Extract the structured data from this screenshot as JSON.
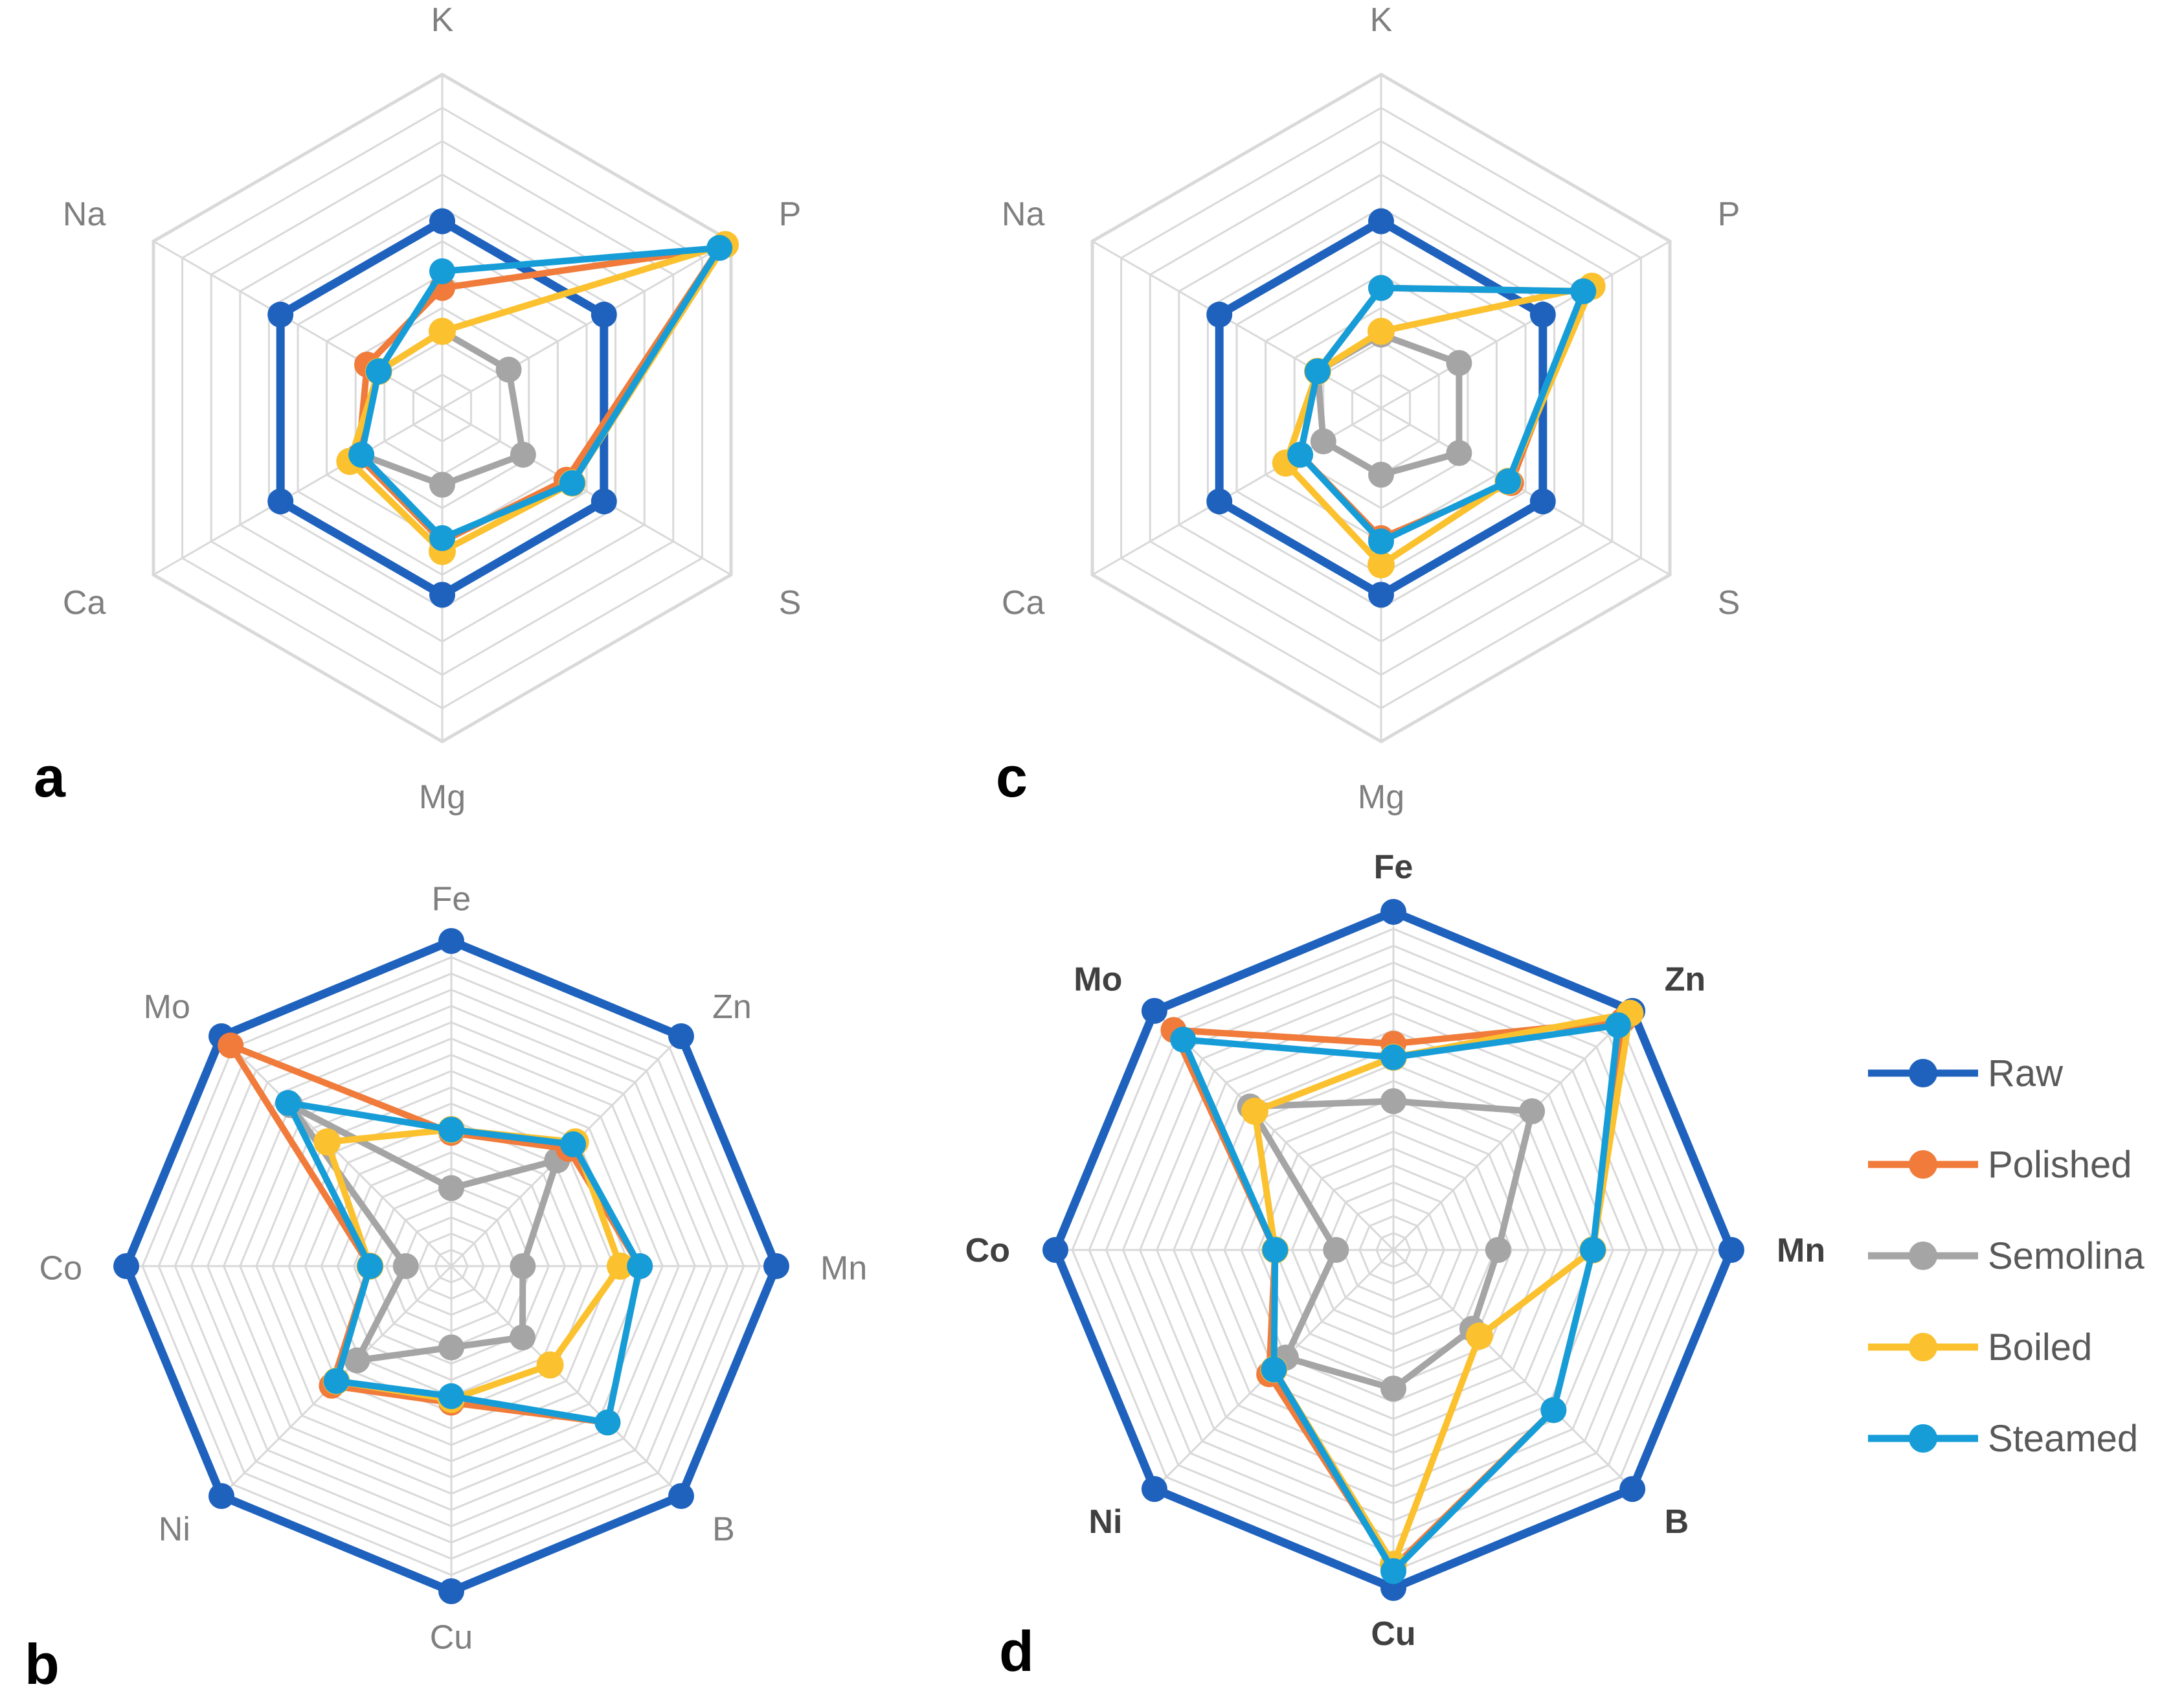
{
  "chart_data": [
    {
      "type": "radar",
      "panel": "a",
      "axes": [
        "K",
        "P",
        "S",
        "Mg",
        "Ca",
        "Na"
      ],
      "rlim": [
        0,
        1
      ],
      "grid": true,
      "series": [
        {
          "name": "Raw",
          "values": [
            0.56,
            0.56,
            0.56,
            0.56,
            0.56,
            0.56
          ]
        },
        {
          "name": "Polished",
          "values": [
            0.36,
            0.96,
            0.43,
            0.4,
            0.29,
            0.26
          ]
        },
        {
          "name": "Semolina",
          "values": [
            0.23,
            0.23,
            0.28,
            0.23,
            0.28,
            0.22
          ]
        },
        {
          "name": "Boiled",
          "values": [
            0.23,
            0.98,
            0.45,
            0.43,
            0.32,
            0.22
          ]
        },
        {
          "name": "Steamed",
          "values": [
            0.41,
            0.96,
            0.45,
            0.39,
            0.28,
            0.22
          ]
        }
      ]
    },
    {
      "type": "radar",
      "panel": "b",
      "axes": [
        "Fe",
        "Zn",
        "Mn",
        "B",
        "Cu",
        "Ni",
        "Co",
        "Mo"
      ],
      "rlim": [
        0,
        1
      ],
      "grid": true,
      "series": [
        {
          "name": "Raw",
          "values": [
            1.0,
            1.0,
            1.0,
            1.0,
            1.0,
            1.0,
            1.0,
            1.0
          ]
        },
        {
          "name": "Polished",
          "values": [
            0.41,
            0.51,
            0.58,
            0.68,
            0.42,
            0.52,
            0.25,
            0.96
          ]
        },
        {
          "name": "Semolina",
          "values": [
            0.24,
            0.46,
            0.22,
            0.31,
            0.25,
            0.41,
            0.14,
            0.7
          ]
        },
        {
          "name": "Boiled",
          "values": [
            0.42,
            0.54,
            0.52,
            0.43,
            0.41,
            0.5,
            0.25,
            0.54
          ]
        },
        {
          "name": "Steamed",
          "values": [
            0.42,
            0.53,
            0.58,
            0.68,
            0.4,
            0.5,
            0.25,
            0.71
          ]
        }
      ]
    },
    {
      "type": "radar",
      "panel": "c",
      "axes": [
        "K",
        "P",
        "S",
        "Mg",
        "Ca",
        "Na"
      ],
      "rlim": [
        0,
        1
      ],
      "grid": true,
      "series": [
        {
          "name": "Raw",
          "values": [
            0.56,
            0.56,
            0.56,
            0.56,
            0.56,
            0.56
          ]
        },
        {
          "name": "Polished",
          "values": [
            0.36,
            0.7,
            0.45,
            0.39,
            0.28,
            0.22
          ]
        },
        {
          "name": "Semolina",
          "values": [
            0.22,
            0.27,
            0.27,
            0.2,
            0.2,
            0.22
          ]
        },
        {
          "name": "Boiled",
          "values": [
            0.23,
            0.73,
            0.44,
            0.47,
            0.33,
            0.22
          ]
        },
        {
          "name": "Steamed",
          "values": [
            0.36,
            0.7,
            0.44,
            0.4,
            0.28,
            0.22
          ]
        }
      ]
    },
    {
      "type": "radar",
      "panel": "d",
      "axes": [
        "Fe",
        "Zn",
        "Mn",
        "B",
        "Cu",
        "Ni",
        "Co",
        "Mo"
      ],
      "rlim": [
        0,
        1
      ],
      "grid": true,
      "series": [
        {
          "name": "Raw",
          "values": [
            1.0,
            1.0,
            1.0,
            1.0,
            1.0,
            1.0,
            1.0,
            1.0
          ]
        },
        {
          "name": "Polished",
          "values": [
            0.61,
            0.96,
            0.59,
            0.67,
            0.94,
            0.52,
            0.35,
            0.92
          ]
        },
        {
          "name": "Semolina",
          "values": [
            0.44,
            0.58,
            0.31,
            0.33,
            0.41,
            0.45,
            0.17,
            0.6
          ]
        },
        {
          "name": "Boiled",
          "values": [
            0.57,
            0.99,
            0.59,
            0.36,
            0.93,
            0.5,
            0.35,
            0.58
          ]
        },
        {
          "name": "Steamed",
          "values": [
            0.57,
            0.94,
            0.59,
            0.67,
            0.95,
            0.5,
            0.35,
            0.88
          ]
        }
      ]
    }
  ],
  "legend": [
    {
      "name": "Raw",
      "color": "#1f62bd"
    },
    {
      "name": "Polished",
      "color": "#f07b3a"
    },
    {
      "name": "Semolina",
      "color": "#a5a5a5"
    },
    {
      "name": "Boiled",
      "color": "#fbc12e"
    },
    {
      "name": "Steamed",
      "color": "#169dd8"
    }
  ],
  "colors": {
    "Raw": "#1f62bd",
    "Polished": "#f07b3a",
    "Semolina": "#a5a5a5",
    "Boiled": "#fbc12e",
    "Steamed": "#169dd8",
    "grid": "#d9d9d9",
    "label_gray": "#7f7f7f",
    "label_dark": "#404040"
  }
}
